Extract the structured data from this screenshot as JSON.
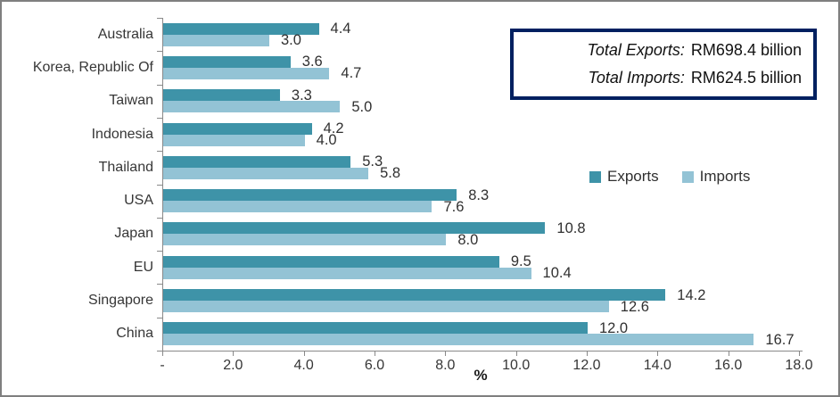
{
  "chart_data": {
    "type": "bar",
    "orientation": "horizontal",
    "title": "",
    "xlabel": "%",
    "ylabel": "",
    "xlim": [
      0,
      18
    ],
    "grid": false,
    "legend_position": "middle-right",
    "categories": [
      "Australia",
      "Korea, Republic Of",
      "Taiwan",
      "Indonesia",
      "Thailand",
      "USA",
      "Japan",
      "EU",
      "Singapore",
      "China"
    ],
    "series": [
      {
        "name": "Exports",
        "color": "#3E93A8",
        "values": [
          4.4,
          3.6,
          3.3,
          4.2,
          5.3,
          8.3,
          10.8,
          9.5,
          14.2,
          12.0
        ]
      },
      {
        "name": "Imports",
        "color": "#93C3D5",
        "values": [
          3.0,
          4.7,
          5.0,
          4.0,
          5.8,
          7.6,
          8.0,
          10.4,
          12.6,
          16.7
        ]
      }
    ],
    "x_ticks": [
      "-",
      "2.0",
      "4.0",
      "6.0",
      "8.0",
      "10.0",
      "12.0",
      "14.0",
      "16.0",
      "18.0"
    ]
  },
  "info_box": {
    "lines": [
      {
        "label": "Total Exports:",
        "value": "RM698.4 billion"
      },
      {
        "label": "Total Imports:",
        "value": "RM624.5 billion"
      }
    ],
    "border_color": "#002060"
  },
  "colors": {
    "exports_bar": "#3E93A8",
    "imports_bar": "#93C3D5",
    "axis": "#898989",
    "frame_border": "#7F7F7F",
    "info_box_border": "#002060",
    "background": "#FFFFFF"
  }
}
